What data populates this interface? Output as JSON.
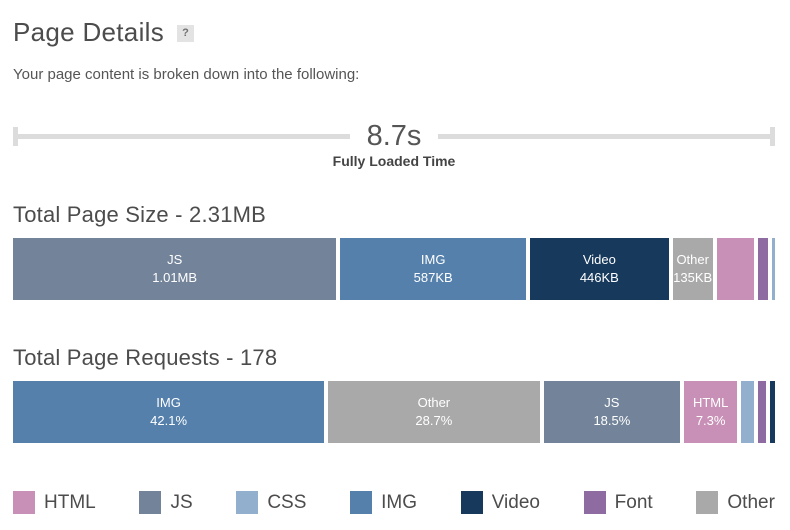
{
  "header": {
    "title": "Page Details",
    "help_badge": "?",
    "subtitle": "Your page content is broken down into the following:"
  },
  "timeline": {
    "value": "8.7s",
    "label": "Fully Loaded Time"
  },
  "colors": {
    "html": "#c890b6",
    "js": "#73849a",
    "css": "#93afce",
    "img": "#5480ab",
    "video": "#17395c",
    "font": "#8e6ba0",
    "other": "#a9a9a9",
    "gauge": "#dcdcdc",
    "heading_text": "#4c4c4c",
    "segment_text": "#ffffff"
  },
  "chart_data": [
    {
      "type": "bar",
      "variant": "horizontal-stacked",
      "title": "Total Page Size - 2.31MB",
      "total_label": "Total Page Size",
      "total_value": "2.31MB",
      "segments": [
        {
          "name": "JS",
          "color_key": "js",
          "label": "JS",
          "value": "1.01MB",
          "weight": 322
        },
        {
          "name": "IMG",
          "color_key": "img",
          "label": "IMG",
          "value": "587KB",
          "weight": 185
        },
        {
          "name": "Video",
          "color_key": "video",
          "label": "Video",
          "value": "446KB",
          "weight": 138
        },
        {
          "name": "Other",
          "color_key": "other",
          "label": "Other",
          "value": "135KB",
          "weight": 40
        },
        {
          "name": "HTML",
          "color_key": "html",
          "label": "",
          "value": "",
          "weight": 37
        },
        {
          "name": "Font",
          "color_key": "font",
          "label": "",
          "value": "",
          "weight": 10
        },
        {
          "name": "CSS",
          "color_key": "css",
          "label": "",
          "value": "",
          "weight": 3
        }
      ]
    },
    {
      "type": "bar",
      "variant": "horizontal-stacked",
      "title": "Total Page Requests - 178",
      "total_label": "Total Page Requests",
      "total_value": "178",
      "segments": [
        {
          "name": "IMG",
          "color_key": "img",
          "label": "IMG",
          "value": "42.1%",
          "weight": 312
        },
        {
          "name": "Other",
          "color_key": "other",
          "label": "Other",
          "value": "28.7%",
          "weight": 212
        },
        {
          "name": "JS",
          "color_key": "js",
          "label": "JS",
          "value": "18.5%",
          "weight": 137
        },
        {
          "name": "HTML",
          "color_key": "html",
          "label": "HTML",
          "value": "7.3%",
          "weight": 53
        },
        {
          "name": "CSS",
          "color_key": "css",
          "label": "",
          "value": "",
          "weight": 13
        },
        {
          "name": "Font",
          "color_key": "font",
          "label": "",
          "value": "",
          "weight": 8
        },
        {
          "name": "Video",
          "color_key": "video",
          "label": "",
          "value": "",
          "weight": 5
        }
      ]
    }
  ],
  "legend": {
    "items": [
      {
        "label": "HTML",
        "color_key": "html"
      },
      {
        "label": "JS",
        "color_key": "js"
      },
      {
        "label": "CSS",
        "color_key": "css"
      },
      {
        "label": "IMG",
        "color_key": "img"
      },
      {
        "label": "Video",
        "color_key": "video"
      },
      {
        "label": "Font",
        "color_key": "font"
      },
      {
        "label": "Other",
        "color_key": "other"
      }
    ]
  }
}
